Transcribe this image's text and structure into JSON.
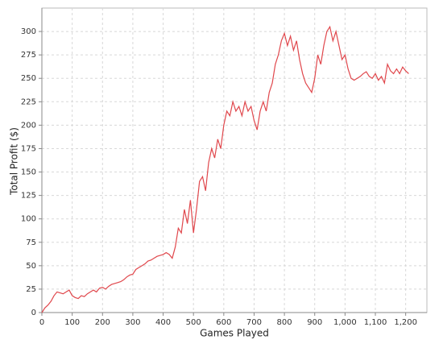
{
  "chart_data": {
    "type": "line",
    "x_label": "Games Played",
    "y_label": "Total Profit ($)",
    "xlim": [
      0,
      1270
    ],
    "ylim": [
      0,
      325
    ],
    "grid": true,
    "xticks": [
      0,
      100,
      200,
      300,
      400,
      500,
      600,
      700,
      800,
      900,
      {
        "value": 1000,
        "label": "1,000"
      },
      {
        "value": 1100,
        "label": "1,100"
      },
      {
        "value": 1200,
        "label": "1,200"
      }
    ],
    "yticks": [
      0,
      25,
      50,
      75,
      100,
      125,
      150,
      175,
      200,
      225,
      250,
      275,
      300
    ],
    "x": [
      0,
      10,
      20,
      30,
      40,
      50,
      60,
      70,
      80,
      90,
      100,
      110,
      120,
      130,
      140,
      150,
      160,
      170,
      180,
      190,
      200,
      210,
      220,
      230,
      240,
      250,
      260,
      270,
      280,
      290,
      300,
      310,
      320,
      330,
      340,
      350,
      360,
      370,
      380,
      390,
      400,
      410,
      420,
      430,
      440,
      450,
      460,
      470,
      480,
      490,
      500,
      510,
      520,
      530,
      540,
      550,
      560,
      570,
      580,
      590,
      600,
      610,
      620,
      630,
      640,
      650,
      660,
      670,
      680,
      690,
      700,
      710,
      720,
      730,
      740,
      750,
      760,
      770,
      780,
      790,
      800,
      810,
      820,
      830,
      840,
      850,
      860,
      870,
      880,
      890,
      900,
      910,
      920,
      930,
      940,
      950,
      960,
      970,
      980,
      990,
      1000,
      1010,
      1020,
      1030,
      1040,
      1050,
      1060,
      1070,
      1080,
      1090,
      1100,
      1110,
      1120,
      1130,
      1140,
      1150,
      1160,
      1170,
      1180,
      1190,
      1200,
      1210
    ],
    "series": [
      {
        "color": "#e0474c",
        "values": [
          0,
          5,
          8,
          12,
          18,
          22,
          21,
          20,
          22,
          24,
          18,
          16,
          15,
          18,
          17,
          20,
          22,
          24,
          22,
          26,
          27,
          25,
          28,
          30,
          31,
          32,
          33,
          35,
          38,
          40,
          41,
          46,
          48,
          50,
          52,
          55,
          56,
          58,
          60,
          61,
          62,
          64,
          62,
          58,
          70,
          90,
          85,
          110,
          95,
          120,
          85,
          110,
          140,
          145,
          130,
          160,
          175,
          165,
          185,
          175,
          200,
          215,
          210,
          225,
          215,
          220,
          210,
          225,
          215,
          220,
          205,
          195,
          215,
          225,
          215,
          235,
          245,
          265,
          275,
          290,
          298,
          285,
          295,
          280,
          290,
          270,
          255,
          245,
          240,
          235,
          250,
          275,
          265,
          285,
          300,
          305,
          290,
          300,
          285,
          270,
          275,
          260,
          250,
          248,
          250,
          252,
          255,
          257,
          252,
          250,
          255,
          248,
          252,
          245,
          265,
          258,
          255,
          260,
          255,
          262,
          258,
          255
        ]
      }
    ]
  }
}
